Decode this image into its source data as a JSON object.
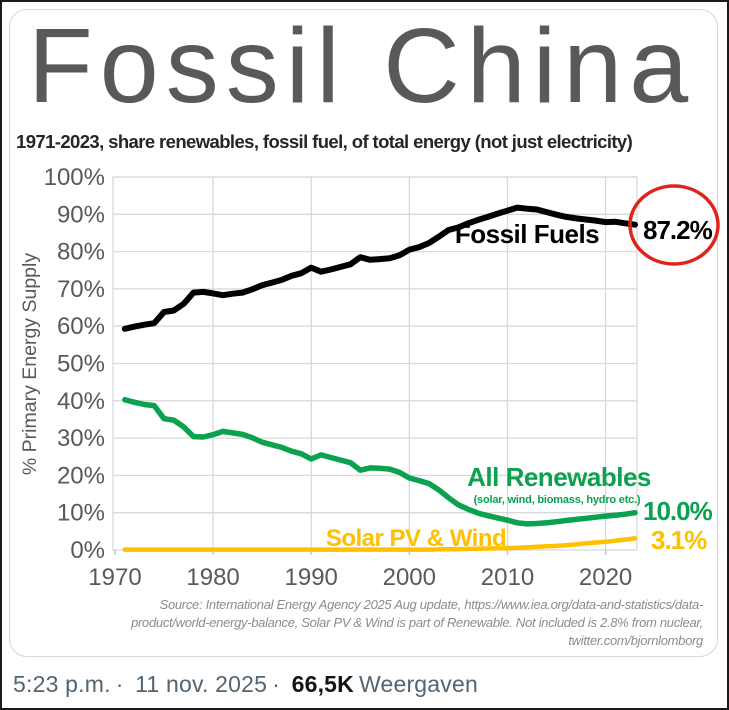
{
  "page": {
    "background": "#ffffff",
    "frame_color": "#1a1a1a",
    "card_border_color": "#cfd9de"
  },
  "chart_data": {
    "type": "line",
    "title": "Fossil China",
    "title_color": "#595959",
    "subtitle": "1971-2023, share renewables, fossil fuel, of total energy (not just electricity)",
    "ylabel": "% Primary Energy Supply",
    "xlim": [
      1969.8,
      2023.2
    ],
    "ylim": [
      0,
      100
    ],
    "x_ticks": [
      1970,
      1980,
      1990,
      2000,
      2010,
      2020
    ],
    "y_ticks": [
      0,
      10,
      20,
      30,
      40,
      50,
      60,
      70,
      80,
      90,
      100
    ],
    "y_tick_suffix": "%",
    "grid_on": true,
    "grid_color": "#d9d9d9",
    "axis_text_color": "#595959",
    "years": [
      1971,
      1972,
      1973,
      1974,
      1975,
      1976,
      1977,
      1978,
      1979,
      1980,
      1981,
      1982,
      1983,
      1984,
      1985,
      1986,
      1987,
      1988,
      1989,
      1990,
      1991,
      1992,
      1993,
      1994,
      1995,
      1996,
      1997,
      1998,
      1999,
      2000,
      2001,
      2002,
      2003,
      2004,
      2005,
      2006,
      2007,
      2008,
      2009,
      2010,
      2011,
      2012,
      2013,
      2014,
      2015,
      2016,
      2017,
      2018,
      2019,
      2020,
      2021,
      2022,
      2023
    ],
    "series": [
      {
        "name": "Fossil Fuels",
        "color": "#000000",
        "end_label": "87.2%",
        "values": [
          59.3,
          59.9,
          60.4,
          60.8,
          63.8,
          64.2,
          66.0,
          69.0,
          69.2,
          68.8,
          68.3,
          68.7,
          69.0,
          69.9,
          71.0,
          71.7,
          72.4,
          73.5,
          74.2,
          75.7,
          74.6,
          75.2,
          75.9,
          76.6,
          78.5,
          77.8,
          78.0,
          78.2,
          79.0,
          80.5,
          81.2,
          82.3,
          84.0,
          85.8,
          86.5,
          87.6,
          88.5,
          89.3,
          90.2,
          91.0,
          91.8,
          91.5,
          91.3,
          90.6,
          89.9,
          89.3,
          88.9,
          88.6,
          88.3,
          87.9,
          88.0,
          87.6,
          87.2
        ]
      },
      {
        "name": "All Renewables",
        "sublabel": "(solar, wind, biomass, hydro etc.)",
        "color": "#0aa24f",
        "end_label": "10.0%",
        "values": [
          40.3,
          39.6,
          39.0,
          38.7,
          35.2,
          34.8,
          33.0,
          30.4,
          30.3,
          30.9,
          31.8,
          31.4,
          31.0,
          30.1,
          28.9,
          28.2,
          27.5,
          26.5,
          25.8,
          24.4,
          25.5,
          24.8,
          24.1,
          23.4,
          21.4,
          22.0,
          21.9,
          21.7,
          20.8,
          19.3,
          18.6,
          17.8,
          16.1,
          14.0,
          12.1,
          10.9,
          9.9,
          9.2,
          8.6,
          8.0,
          7.3,
          7.0,
          7.1,
          7.3,
          7.6,
          7.9,
          8.2,
          8.5,
          8.8,
          9.1,
          9.3,
          9.6,
          10.0
        ]
      },
      {
        "name": "Solar PV & Wind",
        "color": "#ffc000",
        "end_label": "3.1%",
        "values": [
          0.1,
          0.1,
          0.1,
          0.1,
          0.1,
          0.1,
          0.1,
          0.1,
          0.1,
          0.1,
          0.1,
          0.1,
          0.1,
          0.1,
          0.1,
          0.1,
          0.1,
          0.1,
          0.1,
          0.1,
          0.1,
          0.1,
          0.1,
          0.1,
          0.1,
          0.1,
          0.1,
          0.1,
          0.1,
          0.1,
          0.1,
          0.1,
          0.15,
          0.2,
          0.25,
          0.3,
          0.35,
          0.4,
          0.45,
          0.5,
          0.6,
          0.7,
          0.85,
          1.0,
          1.1,
          1.3,
          1.5,
          1.8,
          2.0,
          2.2,
          2.5,
          2.8,
          3.1
        ]
      }
    ],
    "annotation": {
      "circled_value": "87.2%",
      "color": "#e0241c"
    },
    "source_lines": [
      "Source: International Energy Agency 2025 Aug update, https://www.iea.org/data-and-statistics/data-",
      "product/world-energy-balance, Solar PV & Wind is part of Renewable. Not included is 2.8% from nuclear,",
      "twitter.com/bjornlomborg"
    ]
  },
  "footer": {
    "timestamp": "5:23 p.m.",
    "separator": "·",
    "date": "11 nov. 2025",
    "views_count": "66,5K",
    "views_label": "Weergaven"
  }
}
